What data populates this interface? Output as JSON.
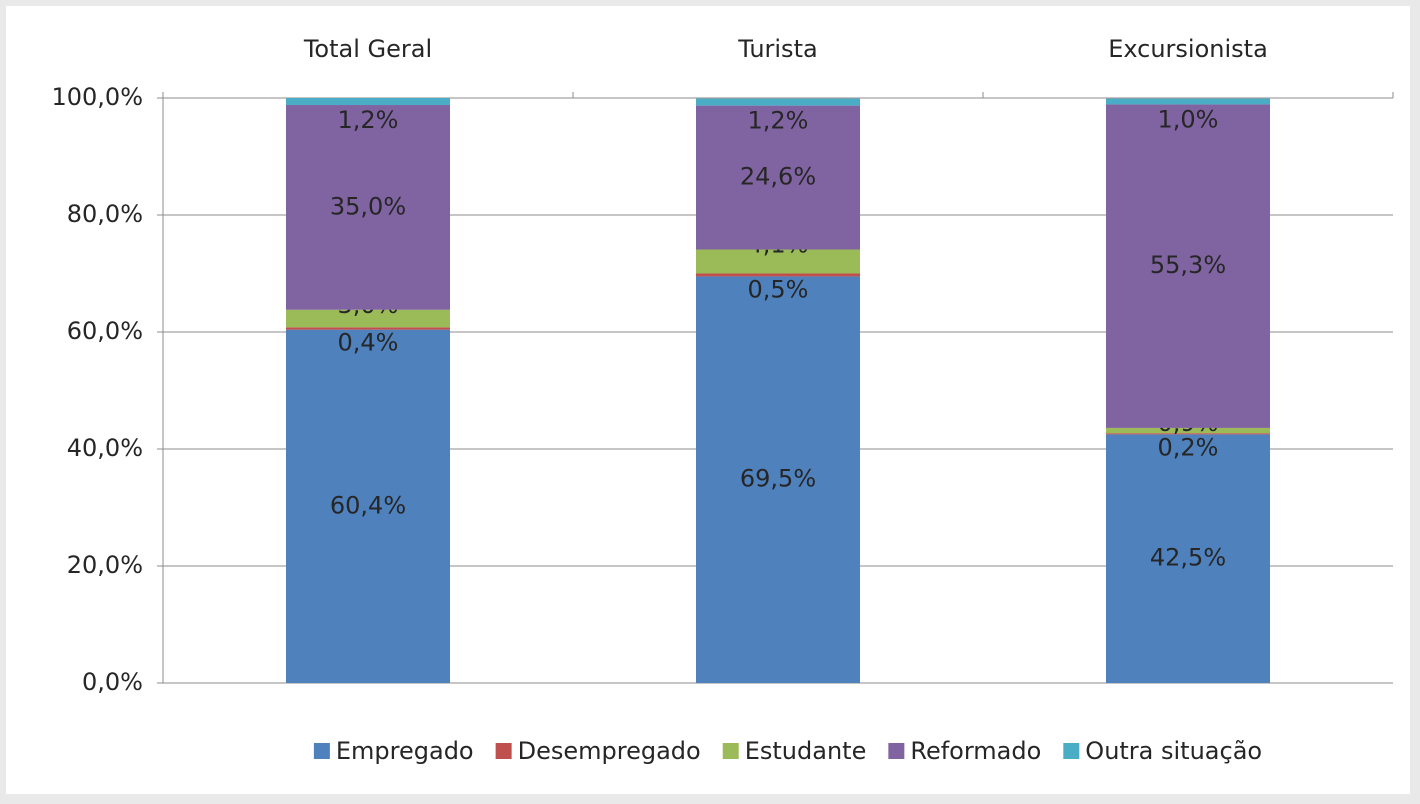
{
  "chart_data": {
    "type": "stacked_bar",
    "categories": [
      "Total Geral",
      "Turista",
      "Excursionista"
    ],
    "series": [
      {
        "name": "Empregado",
        "color": "#4f81bd",
        "values": [
          60.4,
          69.5,
          42.5
        ],
        "value_labels": [
          "60,4%",
          "69,5%",
          "42,5%"
        ]
      },
      {
        "name": "Desempregado",
        "color": "#c0504d",
        "values": [
          0.4,
          0.5,
          0.2
        ],
        "value_labels": [
          "0,4%",
          "0,5%",
          "0,2%"
        ]
      },
      {
        "name": "Estudante",
        "color": "#9bbb59",
        "values": [
          3.0,
          4.1,
          0.9
        ],
        "value_labels": [
          "3,0%",
          "4,1%",
          "0,9%"
        ]
      },
      {
        "name": "Reformado",
        "color": "#8064a2",
        "values": [
          35.0,
          24.6,
          55.3
        ],
        "value_labels": [
          "35,0%",
          "24,6%",
          "55,3%"
        ]
      },
      {
        "name": "Outra situação",
        "color": "#4bacc6",
        "values": [
          1.2,
          1.2,
          1.0
        ],
        "value_labels": [
          "1,2%",
          "1,2%",
          "1,0%"
        ]
      }
    ],
    "ylim": [
      0,
      100
    ],
    "yticks": [
      {
        "value": 0,
        "label": "0,0%"
      },
      {
        "value": 20,
        "label": "20,0%"
      },
      {
        "value": 40,
        "label": "40,0%"
      },
      {
        "value": 60,
        "label": "60,0%"
      },
      {
        "value": 80,
        "label": "80,0%"
      },
      {
        "value": 100,
        "label": "100,0%"
      }
    ],
    "grid": true,
    "legend": "bottom"
  }
}
